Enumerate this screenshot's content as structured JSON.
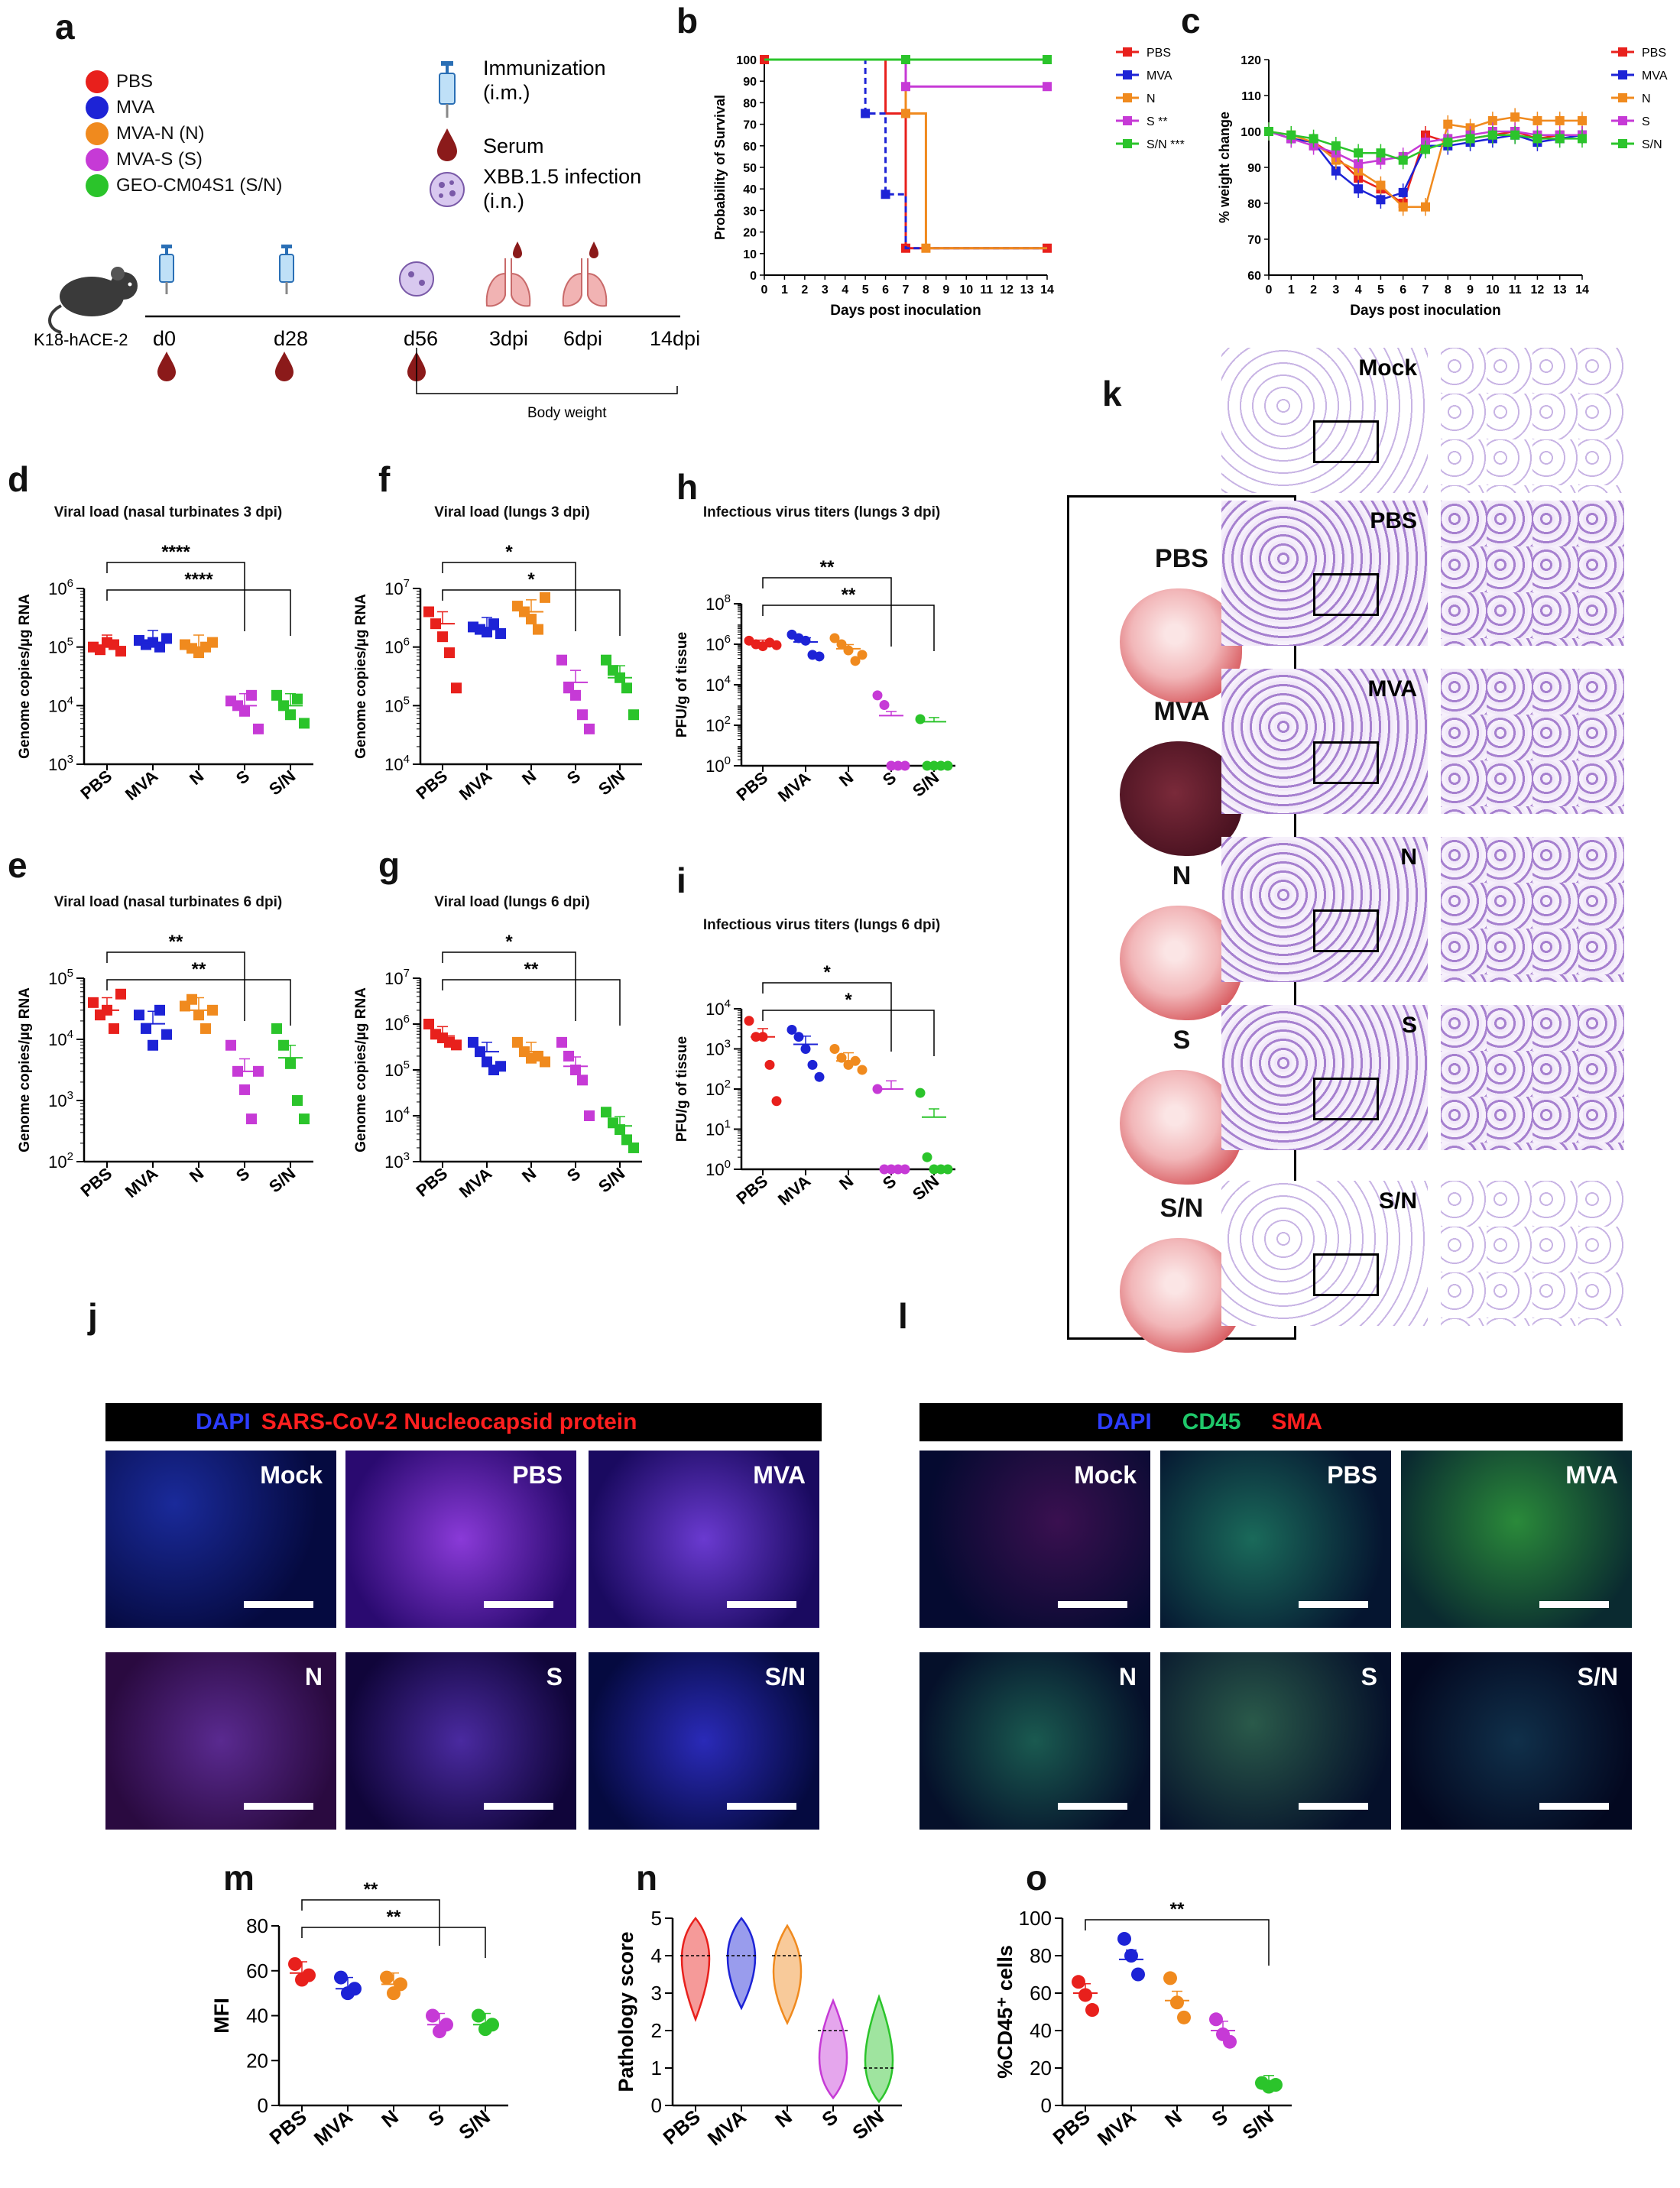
{
  "panel_labels": {
    "a": "a",
    "b": "b",
    "c": "c",
    "d": "d",
    "e": "e",
    "f": "f",
    "g": "g",
    "h": "h",
    "i": "i",
    "j": "j",
    "k": "k",
    "l": "l",
    "m": "m",
    "n": "n",
    "o": "o"
  },
  "colors": {
    "PBS": "#e8201c",
    "MVA": "#1d23d6",
    "N": "#f08a1e",
    "S": "#c63ad6",
    "SN": "#2bc42b"
  },
  "legend_a": [
    {
      "label": "PBS",
      "color": "#e8201c"
    },
    {
      "label": "MVA",
      "color": "#1d23d6"
    },
    {
      "label": "MVA-N (N)",
      "color": "#f08a1e"
    },
    {
      "label": "MVA-S (S)",
      "color": "#c63ad6"
    },
    {
      "label": "GEO-CM04S1 (S/N)",
      "color": "#2bc42b"
    }
  ],
  "schema_a": {
    "immunization": "Immunization",
    "immunization_route": "(i.m.)",
    "serum": "Serum",
    "infection": "XBB.1.5 infection",
    "infection_route": "(i.n.)",
    "mouse": "K18-hACE-2",
    "timeline": [
      "d0",
      "d28",
      "d56",
      "3dpi",
      "6dpi",
      "14dpi"
    ],
    "body_weight": "Body weight"
  },
  "chart_data": [
    {
      "id": "b",
      "type": "line",
      "subtype": "survival-step",
      "xlabel": "Days post inoculation",
      "ylabel": "Probability of Survival",
      "xlim": [
        0,
        14
      ],
      "ylim": [
        0,
        100
      ],
      "xticks": [
        0,
        1,
        2,
        3,
        4,
        5,
        6,
        7,
        8,
        9,
        10,
        11,
        12,
        13,
        14
      ],
      "yticks": [
        0,
        10,
        20,
        30,
        40,
        50,
        60,
        70,
        80,
        90,
        100
      ],
      "series": [
        {
          "name": "PBS",
          "color": "#e8201c",
          "steps": [
            [
              0,
              100
            ],
            [
              6,
              100
            ],
            [
              6,
              75
            ],
            [
              7,
              75
            ],
            [
              7,
              12.5
            ],
            [
              14,
              12.5
            ]
          ],
          "markers": [
            [
              0,
              100
            ],
            [
              7,
              12.5
            ],
            [
              14,
              12.5
            ]
          ]
        },
        {
          "name": "MVA",
          "color": "#1d23d6",
          "steps": [
            [
              0,
              100
            ],
            [
              5,
              100
            ],
            [
              5,
              75
            ],
            [
              6,
              75
            ],
            [
              6,
              37.5
            ],
            [
              7,
              37.5
            ],
            [
              7,
              12.5
            ],
            [
              14,
              12.5
            ]
          ],
          "markers": [
            [
              5,
              75
            ],
            [
              6,
              37.5
            ]
          ],
          "dashed": true
        },
        {
          "name": "N",
          "color": "#f08a1e",
          "steps": [
            [
              0,
              100
            ],
            [
              7,
              100
            ],
            [
              7,
              75
            ],
            [
              8,
              75
            ],
            [
              8,
              12.5
            ],
            [
              14,
              12.5
            ]
          ],
          "markers": [
            [
              7,
              75
            ],
            [
              8,
              12.5
            ]
          ]
        },
        {
          "name": "S **",
          "color": "#c63ad6",
          "steps": [
            [
              0,
              100
            ],
            [
              7,
              100
            ],
            [
              7,
              87.5
            ],
            [
              14,
              87.5
            ]
          ],
          "markers": [
            [
              7,
              87.5
            ],
            [
              14,
              87.5
            ]
          ]
        },
        {
          "name": "S/N ***",
          "color": "#2bc42b",
          "steps": [
            [
              0,
              100
            ],
            [
              14,
              100
            ]
          ],
          "markers": [
            [
              7,
              100
            ],
            [
              14,
              100
            ]
          ]
        }
      ]
    },
    {
      "id": "c",
      "type": "line",
      "xlabel": "Days post inoculation",
      "ylabel": "% weight change",
      "xlim": [
        0,
        14
      ],
      "ylim": [
        60,
        120
      ],
      "xticks": [
        0,
        1,
        2,
        3,
        4,
        5,
        6,
        7,
        8,
        9,
        10,
        11,
        12,
        13,
        14
      ],
      "yticks": [
        60,
        70,
        80,
        90,
        100,
        110,
        120
      ],
      "series": [
        {
          "name": "PBS",
          "color": "#e8201c",
          "x": [
            0,
            1,
            2,
            3,
            4,
            5,
            6,
            7,
            8,
            9,
            10,
            11,
            12,
            13,
            14
          ],
          "y": [
            100,
            98,
            97,
            93,
            87,
            84,
            80,
            99,
            97,
            98,
            99,
            100,
            98,
            99,
            99
          ]
        },
        {
          "name": "MVA",
          "color": "#1d23d6",
          "x": [
            0,
            1,
            2,
            3,
            4,
            5,
            6,
            7,
            8,
            9,
            10,
            11,
            12,
            13,
            14
          ],
          "y": [
            100,
            98,
            97,
            89,
            84,
            81,
            83,
            96,
            96,
            97,
            98,
            99,
            97,
            98,
            99
          ]
        },
        {
          "name": "N",
          "color": "#f08a1e",
          "x": [
            0,
            1,
            2,
            3,
            4,
            5,
            6,
            7,
            8,
            9,
            10,
            11,
            12,
            13,
            14
          ],
          "y": [
            100,
            99,
            97,
            92,
            89,
            85,
            79,
            79,
            102,
            101,
            103,
            104,
            103,
            103,
            103
          ]
        },
        {
          "name": "S",
          "color": "#c63ad6",
          "x": [
            0,
            1,
            2,
            3,
            4,
            5,
            6,
            7,
            8,
            9,
            10,
            11,
            12,
            13,
            14
          ],
          "y": [
            100,
            98,
            96,
            94,
            91,
            92,
            93,
            97,
            98,
            99,
            100,
            100,
            99,
            99,
            99
          ]
        },
        {
          "name": "S/N",
          "color": "#2bc42b",
          "x": [
            0,
            1,
            2,
            3,
            4,
            5,
            6,
            7,
            8,
            9,
            10,
            11,
            12,
            13,
            14
          ],
          "y": [
            100,
            99,
            98,
            96,
            94,
            94,
            92,
            95,
            97,
            98,
            99,
            99,
            98,
            98,
            98
          ]
        }
      ]
    },
    {
      "id": "d",
      "type": "scatter",
      "log": true,
      "title": "Viral load (nasal turbinates 3 dpi)",
      "ylabel": "Genome copies/µg RNA",
      "categories": [
        "PBS",
        "MVA",
        "N",
        "S",
        "S/N"
      ],
      "ylim_exp": [
        3,
        6
      ],
      "marker": "square",
      "points": [
        [
          100000.0,
          90000.0,
          120000.0,
          110000.0,
          85000.0
        ],
        [
          130000.0,
          110000.0,
          120000.0,
          100000.0,
          140000.0
        ],
        [
          110000.0,
          95000.0,
          80000.0,
          100000.0,
          120000.0
        ],
        [
          12000.0,
          10000.0,
          8000.0,
          15000.0,
          4000.0
        ],
        [
          15000.0,
          10000.0,
          7000.0,
          13000.0,
          5000.0
        ]
      ],
      "means": [
        100000.0,
        120000.0,
        100000.0,
        10000.0,
        10000.0
      ],
      "brackets": [
        {
          "from": 0,
          "to": 3,
          "label": "****"
        },
        {
          "from": 0,
          "to": 4,
          "label": "****"
        }
      ]
    },
    {
      "id": "e",
      "type": "scatter",
      "log": true,
      "title": "Viral load (nasal turbinates 6 dpi)",
      "ylabel": "Genome copies/µg RNA",
      "categories": [
        "PBS",
        "MVA",
        "N",
        "S",
        "S/N"
      ],
      "ylim_exp": [
        2,
        5
      ],
      "marker": "square",
      "points": [
        [
          40000.0,
          25000.0,
          30000.0,
          15000.0,
          55000.0
        ],
        [
          25000.0,
          15000.0,
          8000.0,
          30000.0,
          12000.0
        ],
        [
          35000.0,
          45000.0,
          25000.0,
          15000.0,
          30000.0
        ],
        [
          8000.0,
          3000.0,
          1500.0,
          500.0,
          3000.0
        ],
        [
          15000.0,
          8000.0,
          4000.0,
          1000.0,
          500.0
        ]
      ],
      "means": [
        30000.0,
        18000.0,
        30000.0,
        3000.0,
        5000.0
      ],
      "brackets": [
        {
          "from": 0,
          "to": 3,
          "label": "**"
        },
        {
          "from": 0,
          "to": 4,
          "label": "**"
        }
      ]
    },
    {
      "id": "f",
      "type": "scatter",
      "log": true,
      "title": "Viral load (lungs 3 dpi)",
      "ylabel": "Genome copies/µg RNA",
      "categories": [
        "PBS",
        "MVA",
        "N",
        "S",
        "S/N"
      ],
      "ylim_exp": [
        4,
        7
      ],
      "marker": "square",
      "points": [
        [
          4000000.0,
          2500000.0,
          1500000.0,
          800000.0,
          200000.0
        ],
        [
          2200000.0,
          2000000.0,
          1800000.0,
          2500000.0,
          1700000.0
        ],
        [
          5000000.0,
          4000000.0,
          3000000.0,
          2000000.0,
          7000000.0
        ],
        [
          600000.0,
          200000.0,
          150000.0,
          70000.0,
          40000.0
        ],
        [
          600000.0,
          400000.0,
          300000.0,
          200000.0,
          70000.0
        ]
      ],
      "means": [
        2500000.0,
        2000000.0,
        4000000.0,
        250000.0,
        300000.0
      ],
      "brackets": [
        {
          "from": 0,
          "to": 3,
          "label": "*"
        },
        {
          "from": 0,
          "to": 4,
          "label": "*"
        }
      ]
    },
    {
      "id": "g",
      "type": "scatter",
      "log": true,
      "title": "Viral load (lungs 6 dpi)",
      "ylabel": "Genome copies/µg RNA",
      "categories": [
        "PBS",
        "MVA",
        "N",
        "S",
        "S/N"
      ],
      "ylim_exp": [
        3,
        7
      ],
      "marker": "square",
      "points": [
        [
          1000000.0,
          600000.0,
          500000.0,
          400000.0,
          350000.0
        ],
        [
          400000.0,
          250000.0,
          150000.0,
          100000.0,
          120000.0
        ],
        [
          400000.0,
          250000.0,
          180000.0,
          200000.0,
          150000.0
        ],
        [
          400000.0,
          200000.0,
          100000.0,
          60000.0,
          10000.0
        ],
        [
          12000.0,
          7000.0,
          5000.0,
          3000.0,
          2000.0
        ]
      ],
      "means": [
        550000.0,
        250000.0,
        250000.0,
        120000.0,
        6000.0
      ],
      "brackets": [
        {
          "from": 0,
          "to": 3,
          "label": "*"
        },
        {
          "from": 0,
          "to": 4,
          "label": "**"
        }
      ]
    },
    {
      "id": "h",
      "type": "scatter",
      "log": true,
      "title": "Infectious virus titers (lungs 3 dpi)",
      "ylabel": "PFU/g of tissue",
      "categories": [
        "PBS",
        "MVA",
        "N",
        "S",
        "S/N"
      ],
      "ylim_exp": [
        0,
        8
      ],
      "yticks_exp": [
        0,
        2,
        4,
        6,
        8
      ],
      "marker": "circle",
      "points": [
        [
          1500000.0,
          1000000.0,
          800000.0,
          1200000.0,
          900000.0
        ],
        [
          3000000.0,
          2000000.0,
          1500000.0,
          300000.0,
          250000.0
        ],
        [
          2000000.0,
          1000000.0,
          500000.0,
          150000.0,
          300000.0
        ],
        [
          3000.0,
          1000.0,
          1.0,
          1.0,
          1.0
        ],
        [
          200.0,
          1.0,
          1.0,
          1.0,
          1.0
        ]
      ],
      "means": [
        1000000.0,
        1300000.0,
        600000.0,
        300.0,
        150.0
      ],
      "brackets": [
        {
          "from": 0,
          "to": 3,
          "label": "**"
        },
        {
          "from": 0,
          "to": 4,
          "label": "**"
        }
      ]
    },
    {
      "id": "i",
      "type": "scatter",
      "log": true,
      "title": "Infectious virus titers (lungs 6 dpi)",
      "ylabel": "PFU/g of tissue",
      "categories": [
        "PBS",
        "MVA",
        "N",
        "S",
        "S/N"
      ],
      "ylim_exp": [
        0,
        4
      ],
      "marker": "circle",
      "points": [
        [
          5000.0,
          2000.0,
          2000.0,
          400.0,
          50.0
        ],
        [
          3000.0,
          2000.0,
          1000.0,
          400.0,
          200.0
        ],
        [
          1000.0,
          600.0,
          400.0,
          500.0,
          300.0
        ],
        [
          100.0,
          1.0,
          1.0,
          1.0,
          1.0
        ],
        [
          80.0,
          2.0,
          1.0,
          1.0,
          1.0
        ]
      ],
      "means": [
        2000.0,
        1300.0,
        500.0,
        100.0,
        20.0
      ],
      "brackets": [
        {
          "from": 0,
          "to": 3,
          "label": "*"
        },
        {
          "from": 0,
          "to": 4,
          "label": "*"
        }
      ]
    },
    {
      "id": "m",
      "type": "scatter",
      "log": false,
      "ylabel": "MFI",
      "categories": [
        "PBS",
        "MVA",
        "N",
        "S",
        "S/N"
      ],
      "ylim": [
        0,
        80
      ],
      "yticks": [
        0,
        20,
        40,
        60,
        80
      ],
      "marker": "circle",
      "points": [
        [
          63,
          56,
          58
        ],
        [
          57,
          50,
          52
        ],
        [
          57,
          50,
          54
        ],
        [
          40,
          33,
          36
        ],
        [
          40,
          34,
          36
        ]
      ],
      "means": [
        59,
        52,
        54,
        36,
        36
      ],
      "brackets": [
        {
          "from": 0,
          "to": 3,
          "label": "**"
        },
        {
          "from": 0,
          "to": 4,
          "label": "**"
        }
      ]
    },
    {
      "id": "n",
      "type": "violin",
      "ylabel": "Pathology score",
      "categories": [
        "PBS",
        "MVA",
        "N",
        "S",
        "S/N"
      ],
      "ylim": [
        0,
        5
      ],
      "yticks": [
        0,
        1,
        2,
        3,
        4,
        5
      ],
      "medians": [
        4,
        4,
        4,
        2,
        1
      ],
      "ranges": [
        [
          2.3,
          5.0
        ],
        [
          2.6,
          5.0
        ],
        [
          2.2,
          4.8
        ],
        [
          0.2,
          2.8
        ],
        [
          0.1,
          2.9
        ]
      ],
      "widest": [
        4,
        4,
        3.6,
        1.2,
        1.1
      ]
    },
    {
      "id": "o",
      "type": "scatter",
      "log": false,
      "ylabel": "%CD45⁺ cells",
      "categories": [
        "PBS",
        "MVA",
        "N",
        "S",
        "S/N"
      ],
      "ylim": [
        0,
        100
      ],
      "yticks": [
        0,
        20,
        40,
        60,
        80,
        100
      ],
      "marker": "circle",
      "points": [
        [
          66,
          59,
          51
        ],
        [
          89,
          80,
          70
        ],
        [
          68,
          55,
          47
        ],
        [
          46,
          38,
          34
        ],
        [
          12,
          10,
          11
        ]
      ],
      "means": [
        60,
        78,
        56,
        40,
        11
      ],
      "brackets": [
        {
          "from": 0,
          "to": 4,
          "label": "**"
        }
      ]
    }
  ],
  "panel_k": {
    "labels": [
      "Mock",
      "PBS",
      "MVA",
      "N",
      "S",
      "S/N"
    ],
    "gross": [
      "PBS",
      "MVA",
      "N",
      "S",
      "S/N"
    ]
  },
  "panel_j": {
    "header": {
      "dapi": "DAPI",
      "marker": "SARS-CoV-2 Nucleocapsid protein"
    },
    "labels": [
      "Mock",
      "PBS",
      "MVA",
      "N",
      "S",
      "S/N"
    ]
  },
  "panel_l": {
    "header": {
      "dapi": "DAPI",
      "cd45": "CD45",
      "sma": "SMA"
    },
    "labels": [
      "Mock",
      "PBS",
      "MVA",
      "N",
      "S",
      "S/N"
    ]
  }
}
